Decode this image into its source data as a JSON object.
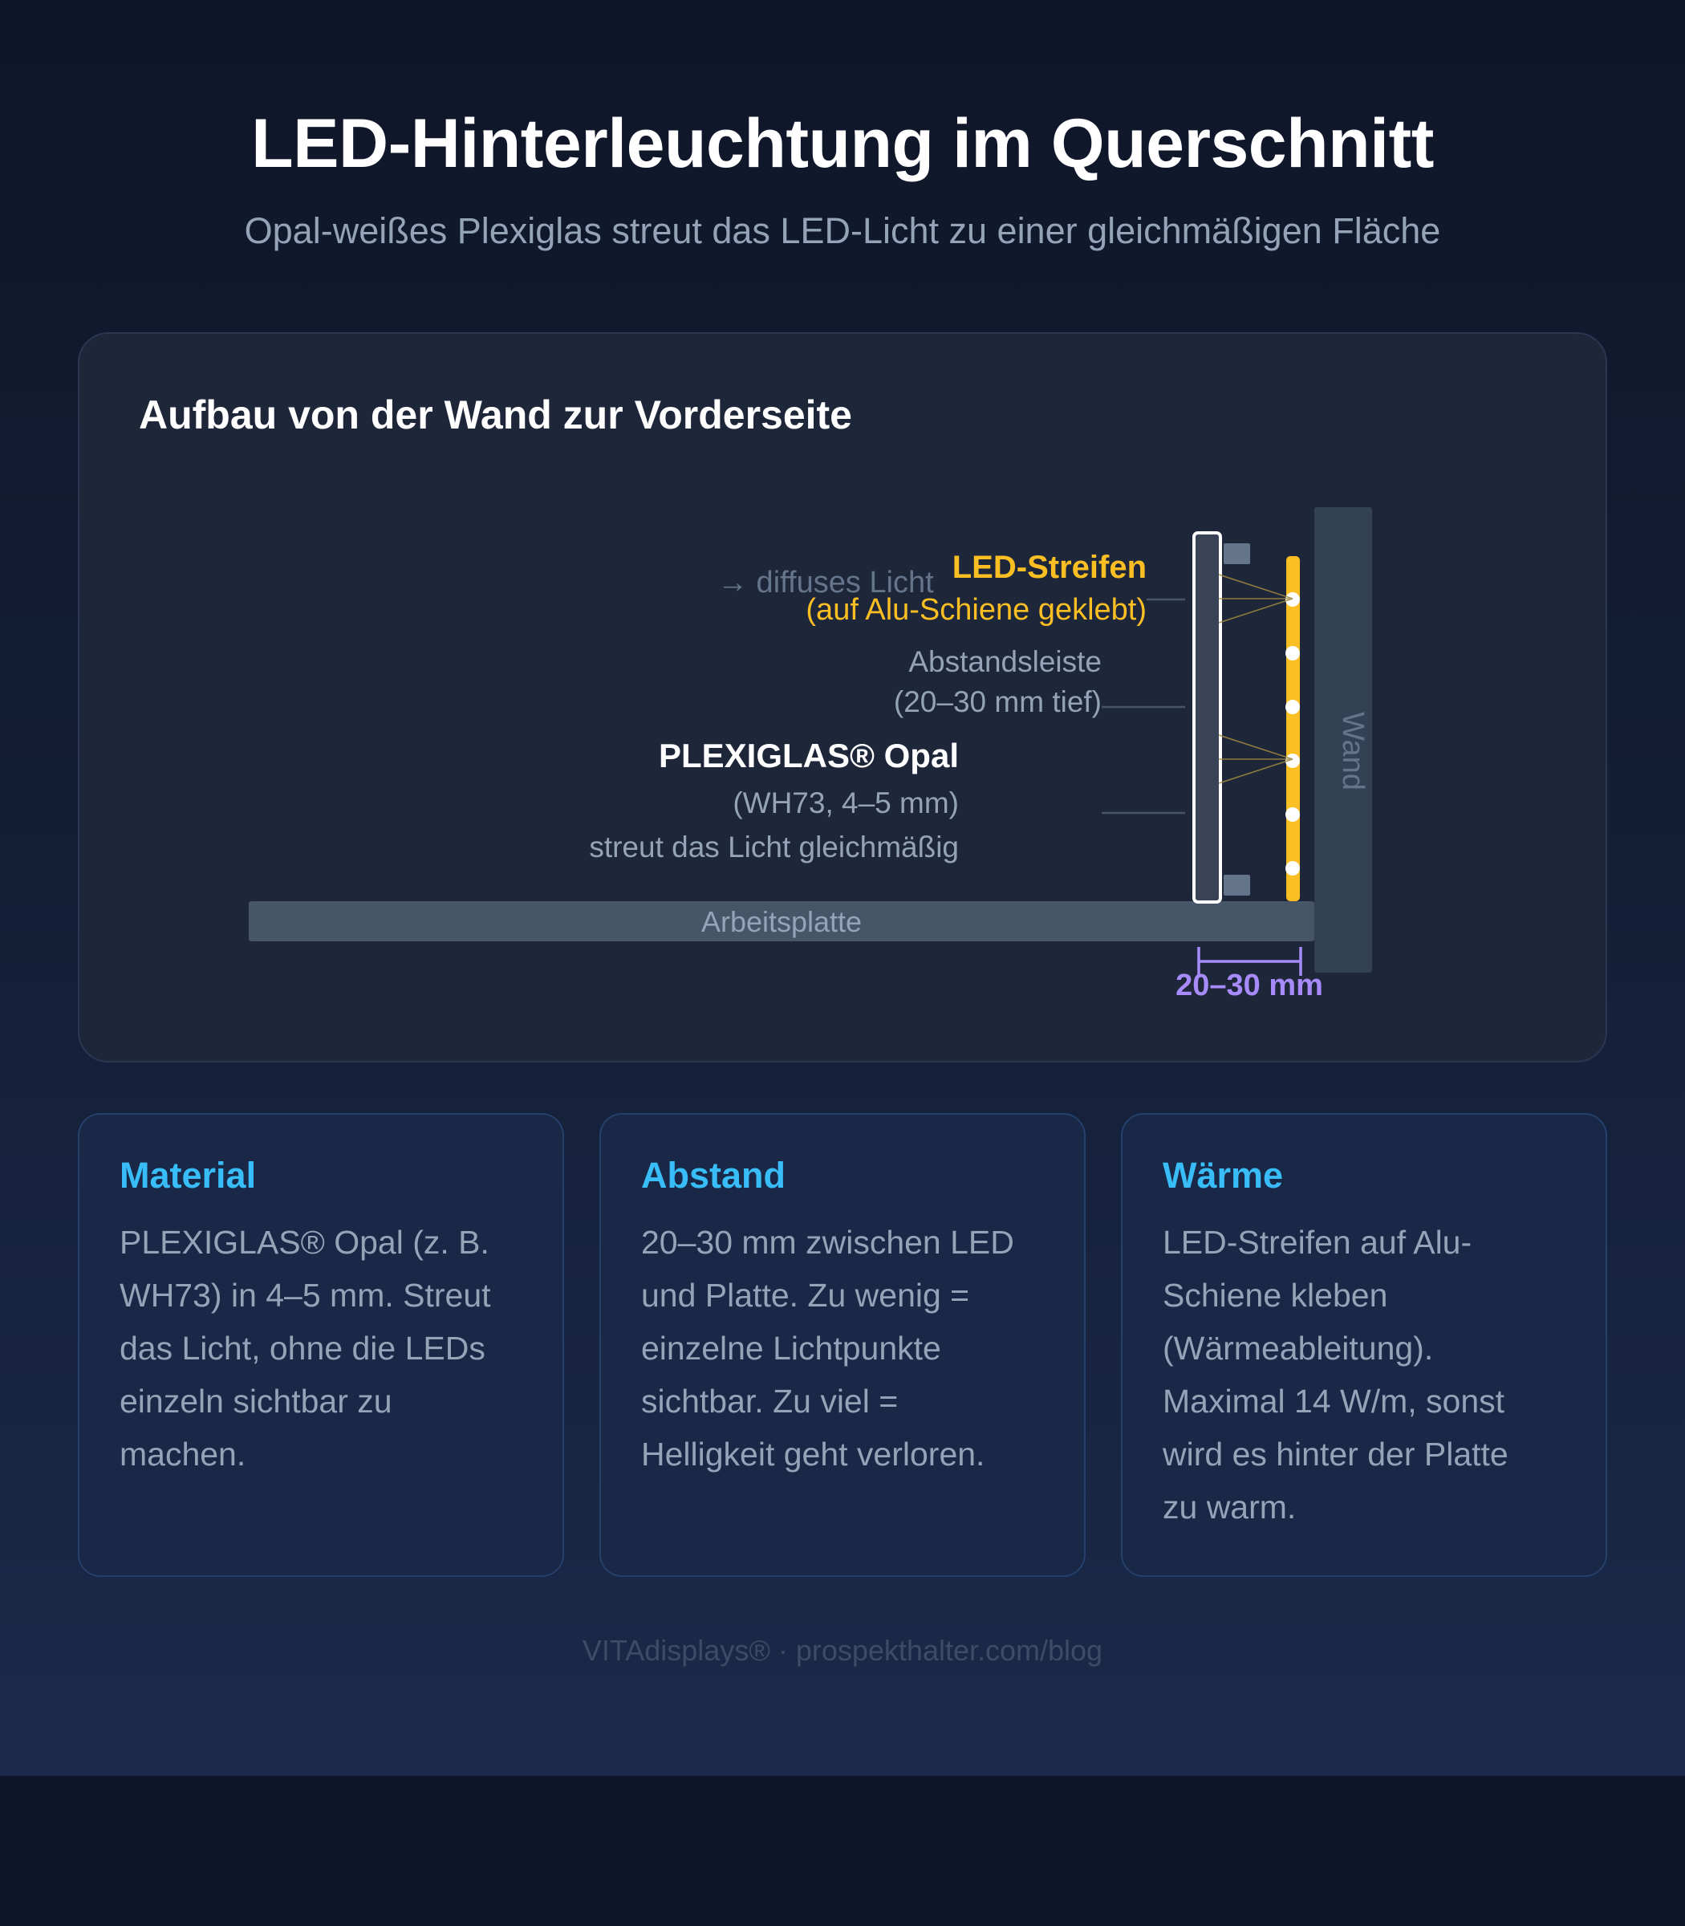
{
  "header": {
    "title": "LED-Hinterleuchtung im Querschnitt",
    "subtitle": "Opal-weißes Plexiglas streut das LED-Licht zu einer gleichmäßigen Fläche"
  },
  "diagram": {
    "heading": "Aufbau von der Wand zur Vorderseite",
    "labels": {
      "led_title": "LED-Streifen",
      "led_sub": "(auf Alu-Schiene geklebt)",
      "diffuse_light": "→ diffuses Licht",
      "spacer_line1": "Abstandsleiste",
      "spacer_line2": "(20–30 mm tief)",
      "plexi_title": "PLEXIGLAS® Opal",
      "plexi_sub": "(WH73, 4–5 mm)",
      "plexi_note": "streut das Licht gleichmäßig",
      "wall": "Wand",
      "countertop": "Arbeitsplatte",
      "dimension": "20–30 mm"
    },
    "led_count": 6,
    "colors": {
      "led_accent": "#fbbf24",
      "dimension_accent": "#a78bfa",
      "label_muted": "#94a3b8"
    }
  },
  "cards": [
    {
      "title": "Material",
      "lines": [
        "PLEXIGLAS® Opal (z. B.",
        "WH73) in 4–5 mm. Streut",
        "das Licht, ohne die LEDs",
        "einzeln sichtbar zu",
        "machen."
      ]
    },
    {
      "title": "Abstand",
      "lines": [
        "20–30 mm zwischen LED",
        "und Platte. Zu wenig =",
        "einzelne Lichtpunkte",
        "sichtbar. Zu viel =",
        "Helligkeit geht verloren."
      ]
    },
    {
      "title": "Wärme",
      "lines": [
        "LED-Streifen auf Alu-",
        "Schiene kleben",
        "(Wärmeableitung).",
        "Maximal 14 W/m, sonst",
        "wird es hinter der Platte",
        "zu warm."
      ]
    }
  ],
  "footer": "VITAdisplays® · prospekthalter.com/blog"
}
